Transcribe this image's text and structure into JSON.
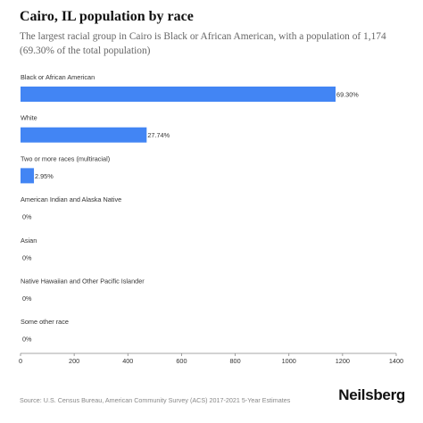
{
  "header": {
    "title": "Cairo, IL population by race",
    "subtitle": "The largest racial group in Cairo is Black or African American, with a population of 1,174 (69.30% of the total population)"
  },
  "footer": {
    "source": "Source: U.S. Census Bureau, American Community Survey (ACS) 2017-2021 5-Year Estimates",
    "brand": "Neilsberg"
  },
  "colors": {
    "bar": "#4285f4",
    "axis": "#888888"
  },
  "chart_data": {
    "type": "bar",
    "orientation": "horizontal",
    "categories": [
      "Black or African American",
      "White",
      "Two or more races (multiracial)",
      "American Indian and Alaska Native",
      "Asian",
      "Native Hawaiian and Other Pacific Islander",
      "Some other race"
    ],
    "values": [
      1174,
      470,
      50,
      0,
      0,
      0,
      0
    ],
    "value_labels": [
      "69.30%",
      "27.74%",
      "2.95%",
      "0%",
      "0%",
      "0%",
      "0%"
    ],
    "xlim": [
      0,
      1400
    ],
    "xticks": [
      0,
      200,
      400,
      600,
      800,
      1000,
      1200,
      1400
    ],
    "grid": false,
    "legend": "none"
  }
}
